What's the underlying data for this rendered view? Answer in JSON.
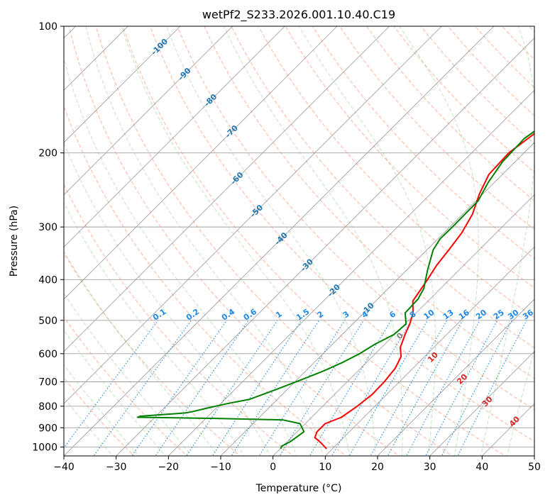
{
  "chart_data": {
    "type": "line",
    "title": "wetPf2_S233.2026.001.10.40.C19",
    "xlabel": "Temperature (°C)",
    "ylabel": "Pressure (hPa)",
    "xlim": [
      -40,
      50
    ],
    "ylim": [
      1050,
      100
    ],
    "x_ticks": [
      -40,
      -30,
      -20,
      -10,
      0,
      10,
      20,
      30,
      40,
      50
    ],
    "y_ticks": [
      1000,
      900,
      800,
      700,
      600,
      500,
      400,
      300,
      200,
      100
    ],
    "x_tick_labels": [
      "−40",
      "−30",
      "−20",
      "−10",
      "0",
      "10",
      "20",
      "30",
      "40",
      "50"
    ],
    "y_tick_labels": [
      "1000",
      "900",
      "800",
      "700",
      "600",
      "500",
      "400",
      "300",
      "200",
      "100"
    ],
    "colors": {
      "temperature": "#ff0000",
      "dewpoint": "#008000",
      "dry_adiabat": "#ff6a3d",
      "moist_adiabat": "#4caf50",
      "mixing_ratio": "#1e88e5",
      "isotherm": "#808080",
      "isobar": "#a0a0a0",
      "isotherm_label": "#1f77b4",
      "mixing_label": "#1e88e5",
      "wet_label": "#d62728",
      "wet_zero_label": "#7f7f7f"
    },
    "series": [
      {
        "name": "Temperature",
        "color": "#ff0000",
        "points": [
          [
            8.9,
            1010
          ],
          [
            6.5,
            975
          ],
          [
            4.5,
            950
          ],
          [
            3.8,
            920
          ],
          [
            3.8,
            880
          ],
          [
            5.7,
            850
          ],
          [
            6.6,
            800
          ],
          [
            7.2,
            750
          ],
          [
            7.1,
            700
          ],
          [
            6.6,
            650
          ],
          [
            5.5,
            610
          ],
          [
            3.6,
            580
          ],
          [
            2.0,
            540
          ],
          [
            0.9,
            510
          ],
          [
            -0.6,
            480
          ],
          [
            -2.9,
            450
          ],
          [
            -4.2,
            400
          ],
          [
            -5.2,
            370
          ],
          [
            -5.8,
            340
          ],
          [
            -6.6,
            310
          ],
          [
            -8.1,
            280
          ],
          [
            -10.7,
            250
          ],
          [
            -12.6,
            225
          ],
          [
            -12.9,
            200
          ],
          [
            -11.7,
            180
          ],
          [
            -8.6,
            170
          ],
          [
            -1.7,
            160
          ],
          [
            2.5,
            150
          ],
          [
            6.0,
            140
          ],
          [
            8.5,
            130
          ],
          [
            11.0,
            118
          ],
          [
            13.0,
            108
          ],
          [
            15.9,
            100
          ]
        ]
      },
      {
        "name": "Dewpoint",
        "color": "#008000",
        "points": [
          [
            0.1,
            1010
          ],
          [
            -0.2,
            995
          ],
          [
            0.6,
            970
          ],
          [
            1.3,
            920
          ],
          [
            -1.0,
            880
          ],
          [
            -5.0,
            862
          ],
          [
            -18.0,
            855
          ],
          [
            -33.3,
            850
          ],
          [
            -33.0,
            845
          ],
          [
            -25.0,
            830
          ],
          [
            -24.0,
            825
          ],
          [
            -22.0,
            810
          ],
          [
            -19.0,
            790
          ],
          [
            -15.3,
            770
          ],
          [
            -12.1,
            730
          ],
          [
            -9.0,
            690
          ],
          [
            -6.6,
            660
          ],
          [
            -4.6,
            630
          ],
          [
            -3.0,
            600
          ],
          [
            -1.9,
            570
          ],
          [
            -0.1,
            540
          ],
          [
            0.2,
            510
          ],
          [
            -2.1,
            480
          ],
          [
            -2.3,
            445
          ],
          [
            -3.2,
            420
          ],
          [
            -6.0,
            380
          ],
          [
            -8.8,
            340
          ],
          [
            -9.6,
            320
          ],
          [
            -9.5,
            300
          ],
          [
            -9.6,
            260
          ],
          [
            -11.2,
            235
          ],
          [
            -12.4,
            210
          ],
          [
            -12.7,
            185
          ],
          [
            -11.5,
            170
          ],
          [
            -9.7,
            155
          ],
          [
            -7.9,
            140
          ],
          [
            -5.8,
            125
          ],
          [
            -2.3,
            110
          ],
          [
            0.3,
            100
          ]
        ]
      }
    ],
    "isotherm_labels": [
      "-100",
      "-90",
      "-80",
      "-70",
      "-60",
      "-50",
      "-40",
      "-30",
      "-20",
      "-10"
    ],
    "isotherm_label_temps": [
      -100,
      -90,
      -80,
      -70,
      -60,
      -50,
      -40,
      -30,
      -20,
      -10
    ],
    "mixing_ratio_labels": [
      "0.1",
      "0.2",
      "0.4",
      "0.6",
      "1",
      "1.5",
      "2",
      "3",
      "4",
      "6",
      "8",
      "10",
      "13",
      "16",
      "20",
      "25",
      "30",
      "36"
    ],
    "mixing_ratio_values": [
      0.1,
      0.2,
      0.4,
      0.6,
      1,
      1.5,
      2,
      3,
      4,
      6,
      8,
      10,
      13,
      16,
      20,
      25,
      30,
      36
    ],
    "wet_bulb_labels": [
      "0",
      "10",
      "20",
      "30",
      "40"
    ],
    "wet_bulb_values": [
      0,
      10,
      20,
      30,
      40
    ]
  }
}
